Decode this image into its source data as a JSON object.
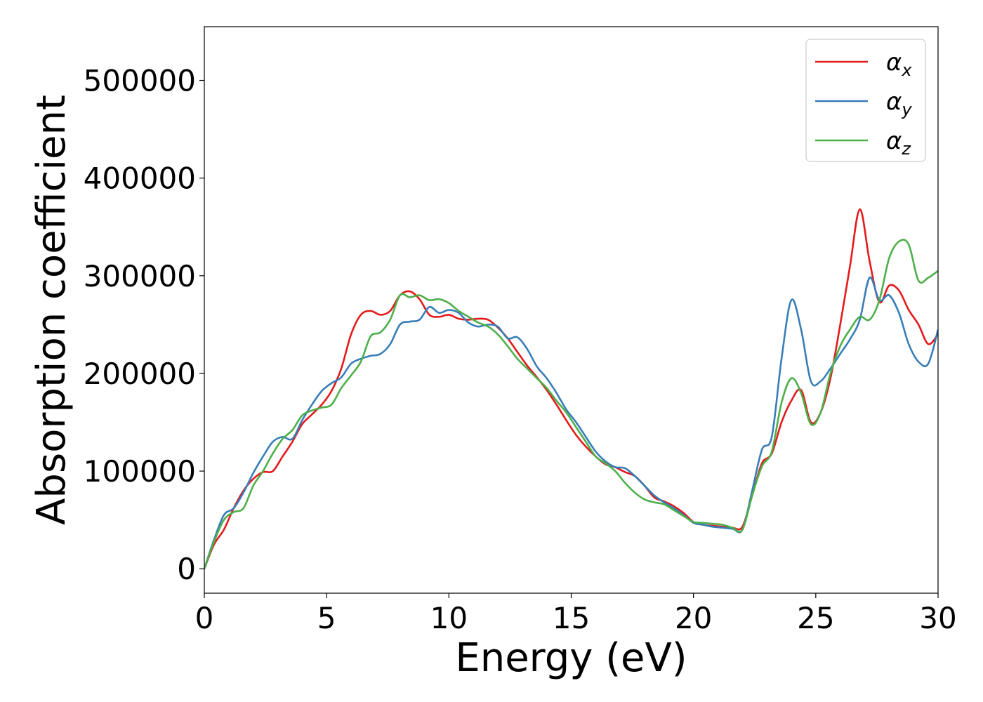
{
  "chart_data": {
    "type": "line",
    "xlabel": "Energy (eV)",
    "ylabel": "Absorption coefficient",
    "xlim": [
      0,
      30
    ],
    "ylim": [
      -25000,
      555000
    ],
    "x_ticks": [
      0,
      5,
      10,
      15,
      20,
      25,
      30
    ],
    "y_ticks": [
      0,
      100000,
      200000,
      300000,
      400000,
      500000
    ],
    "grid": false,
    "legend_position": "top-right",
    "series": [
      {
        "name": "α_x",
        "symbol": "α",
        "subscript": "x",
        "color": "#e41a1c",
        "x": [
          0,
          0.4,
          0.8,
          1.2,
          1.6,
          2.0,
          2.4,
          2.8,
          3.2,
          3.6,
          4.0,
          4.4,
          4.8,
          5.2,
          5.6,
          6.0,
          6.4,
          6.8,
          7.2,
          7.6,
          8.0,
          8.4,
          8.8,
          9.2,
          9.6,
          10.0,
          10.4,
          10.8,
          11.2,
          11.6,
          12.0,
          12.4,
          12.8,
          13.2,
          13.6,
          14.0,
          14.4,
          14.8,
          15.2,
          15.6,
          16.0,
          16.4,
          16.8,
          17.2,
          17.6,
          18.0,
          18.4,
          18.8,
          19.2,
          19.6,
          20.0,
          20.4,
          20.8,
          21.2,
          21.6,
          22.0,
          22.4,
          22.8,
          23.2,
          23.6,
          24.0,
          24.4,
          24.8,
          25.2,
          25.6,
          26.0,
          26.4,
          26.8,
          27.2,
          27.6,
          28.0,
          28.4,
          28.8,
          29.2,
          29.6,
          30.0
        ],
        "y": [
          0,
          25000,
          40000,
          62000,
          80000,
          92000,
          99000,
          100000,
          115000,
          130000,
          148000,
          158000,
          168000,
          182000,
          205000,
          240000,
          260000,
          264000,
          260000,
          264000,
          280000,
          284000,
          276000,
          260000,
          258000,
          260000,
          256000,
          255000,
          256000,
          255000,
          247000,
          236000,
          222000,
          208000,
          196000,
          183000,
          168000,
          152000,
          137000,
          125000,
          115000,
          107000,
          104000,
          99000,
          95000,
          85000,
          73000,
          69000,
          64000,
          57000,
          48000,
          45000,
          44000,
          43000,
          42000,
          43000,
          75000,
          108000,
          118000,
          150000,
          172000,
          183000,
          150000,
          160000,
          195000,
          250000,
          310000,
          368000,
          315000,
          273000,
          290000,
          285000,
          265000,
          250000,
          230000,
          240000
        ]
      },
      {
        "name": "α_y",
        "symbol": "α",
        "subscript": "y",
        "color": "#377eb8",
        "x": [
          0,
          0.4,
          0.8,
          1.2,
          1.6,
          2.0,
          2.4,
          2.8,
          3.2,
          3.6,
          4.0,
          4.4,
          4.8,
          5.2,
          5.6,
          6.0,
          6.4,
          6.8,
          7.2,
          7.6,
          8.0,
          8.4,
          8.8,
          9.2,
          9.6,
          10.0,
          10.4,
          10.8,
          11.2,
          11.6,
          12.0,
          12.4,
          12.8,
          13.2,
          13.6,
          14.0,
          14.4,
          14.8,
          15.2,
          15.6,
          16.0,
          16.4,
          16.8,
          17.2,
          17.6,
          18.0,
          18.4,
          18.8,
          19.2,
          19.6,
          20.0,
          20.4,
          20.8,
          21.2,
          21.6,
          22.0,
          22.4,
          22.8,
          23.2,
          23.6,
          24.0,
          24.4,
          24.8,
          25.2,
          25.6,
          26.0,
          26.4,
          26.8,
          27.2,
          27.6,
          28.0,
          28.4,
          28.8,
          29.2,
          29.6,
          30.0
        ],
        "y": [
          0,
          30000,
          55000,
          62000,
          78000,
          98000,
          115000,
          130000,
          135000,
          133000,
          152000,
          168000,
          182000,
          190000,
          196000,
          210000,
          215000,
          218000,
          220000,
          230000,
          250000,
          253000,
          255000,
          268000,
          262000,
          265000,
          262000,
          252000,
          248000,
          250000,
          248000,
          236000,
          237000,
          225000,
          207000,
          195000,
          180000,
          163000,
          150000,
          135000,
          120000,
          110000,
          104000,
          103000,
          95000,
          85000,
          75000,
          68000,
          62000,
          55000,
          47000,
          45000,
          43000,
          42000,
          41000,
          40000,
          80000,
          122000,
          135000,
          215000,
          275000,
          245000,
          192000,
          192000,
          205000,
          220000,
          235000,
          255000,
          298000,
          275000,
          280000,
          262000,
          230000,
          212000,
          210000,
          245000
        ]
      },
      {
        "name": "α_z",
        "symbol": "α",
        "subscript": "z",
        "color": "#4daf4a",
        "x": [
          0,
          0.4,
          0.8,
          1.2,
          1.6,
          2.0,
          2.4,
          2.8,
          3.2,
          3.6,
          4.0,
          4.4,
          4.8,
          5.2,
          5.6,
          6.0,
          6.4,
          6.8,
          7.2,
          7.6,
          8.0,
          8.4,
          8.8,
          9.2,
          9.6,
          10.0,
          10.4,
          10.8,
          11.2,
          11.6,
          12.0,
          12.4,
          12.8,
          13.2,
          13.6,
          14.0,
          14.4,
          14.8,
          15.2,
          15.6,
          16.0,
          16.4,
          16.8,
          17.2,
          17.6,
          18.0,
          18.4,
          18.8,
          19.2,
          19.6,
          20.0,
          20.4,
          20.8,
          21.2,
          21.6,
          22.0,
          22.4,
          22.8,
          23.2,
          23.6,
          24.0,
          24.4,
          24.8,
          25.2,
          25.6,
          26.0,
          26.4,
          26.8,
          27.2,
          27.6,
          28.0,
          28.4,
          28.8,
          29.2,
          29.6,
          30.0
        ],
        "y": [
          0,
          28000,
          50000,
          58000,
          62000,
          85000,
          100000,
          118000,
          133000,
          142000,
          157000,
          162000,
          165000,
          168000,
          185000,
          198000,
          212000,
          238000,
          242000,
          255000,
          280000,
          278000,
          280000,
          275000,
          276000,
          272000,
          264000,
          258000,
          252000,
          248000,
          240000,
          228000,
          215000,
          205000,
          195000,
          185000,
          172000,
          160000,
          145000,
          130000,
          115000,
          108000,
          100000,
          88000,
          78000,
          71000,
          68000,
          66000,
          60000,
          54000,
          48000,
          47000,
          46000,
          45000,
          42000,
          40000,
          75000,
          105000,
          120000,
          170000,
          195000,
          180000,
          148000,
          160000,
          200000,
          228000,
          245000,
          258000,
          255000,
          275000,
          318000,
          335000,
          332000,
          295000,
          298000,
          305000
        ]
      }
    ]
  }
}
